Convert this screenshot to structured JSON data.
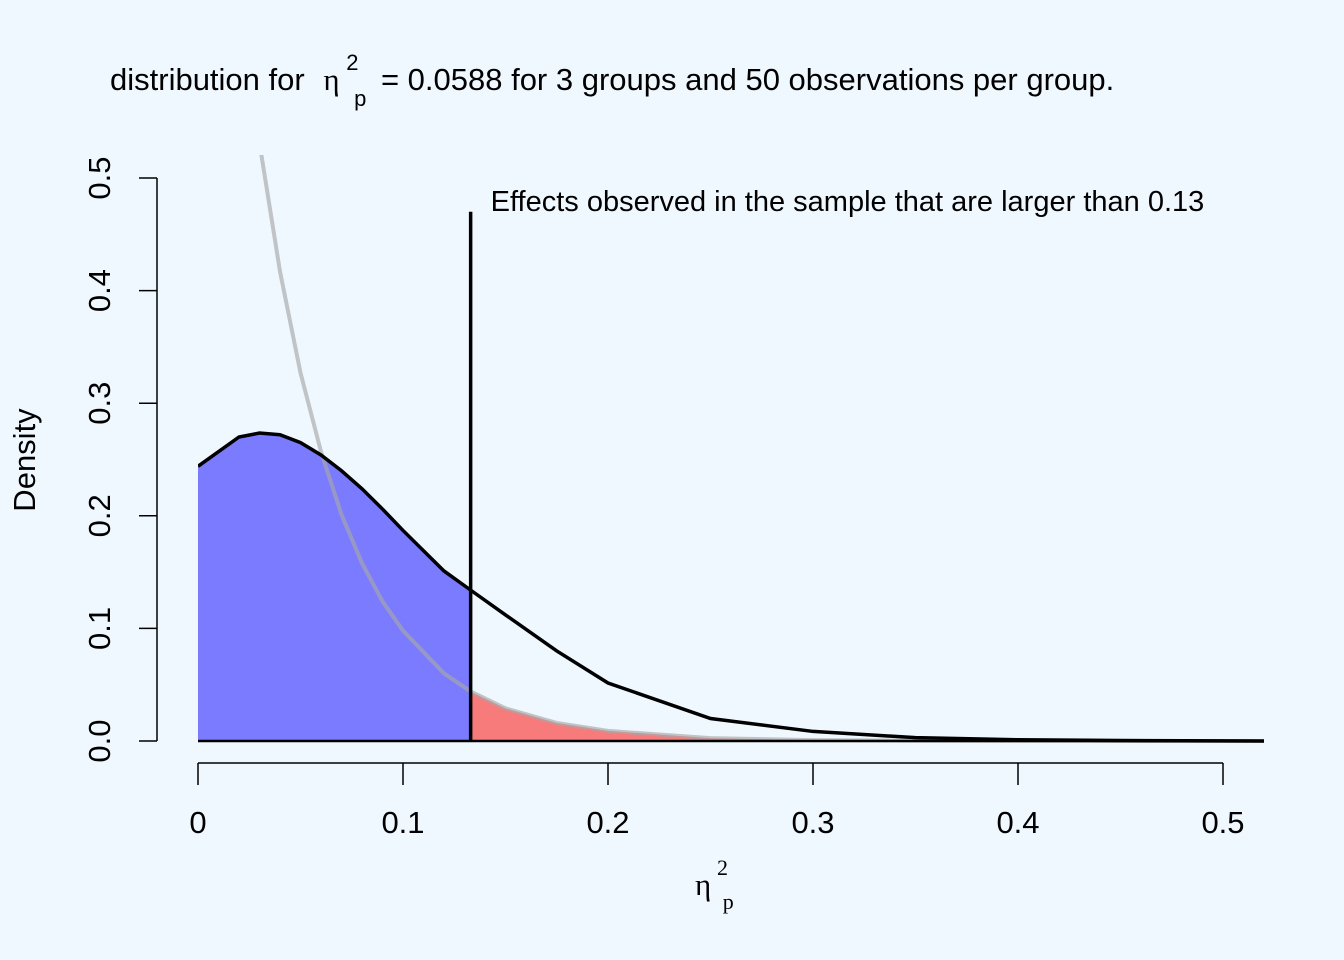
{
  "chart_data": {
    "type": "density",
    "title": {
      "before": "distribution for",
      "symbol": "η",
      "superscript": "2",
      "subscript": "p",
      "after": "= 0.0588 for 3 groups and 50 observations per group."
    },
    "xlabel": {
      "symbol": "η",
      "superscript": "2",
      "subscript": "p"
    },
    "ylabel": "Density",
    "annotation": "Effects observed in the sample that are larger than  0.13",
    "x": [
      0,
      0.02,
      0.03,
      0.04,
      0.05,
      0.06,
      0.07,
      0.08,
      0.09,
      0.1,
      0.12,
      0.133,
      0.15,
      0.175,
      0.2,
      0.25,
      0.3,
      0.35,
      0.4,
      0.45,
      0.52
    ],
    "series": [
      {
        "color": "#a8a8a8",
        "fill_color": "#f77b7b",
        "fill_side": "above",
        "values": [
          null,
          null,
          0.531,
          0.417,
          0.327,
          0.257,
          0.201,
          0.158,
          0.124,
          0.098,
          0.06,
          0.044,
          0.029,
          0.016,
          0.009,
          0.0026,
          0.0008,
          0.0003,
          0.0001,
          3e-05,
          0
        ]
      },
      {
        "color": "#000000",
        "fill_color": "#7b7bff",
        "fill_side": "below",
        "values": [
          0.244,
          0.27,
          0.2735,
          0.272,
          0.265,
          0.254,
          0.24,
          0.224,
          0.206,
          0.187,
          0.151,
          0.134,
          0.112,
          0.08,
          0.0515,
          0.02,
          0.0085,
          0.003,
          0.0011,
          0.0004,
          0
        ]
      }
    ],
    "cutoff": 0.133,
    "cutoff_top": 0.47,
    "xlim": [
      0,
      0.52
    ],
    "ylim": [
      0,
      0.52
    ],
    "xticks": [
      0,
      0.1,
      0.2,
      0.3,
      0.4,
      0.5
    ],
    "yticks": [
      {
        "value": 0,
        "label": "0.0"
      },
      0.1,
      0.2,
      0.3,
      0.4,
      0.5
    ]
  }
}
